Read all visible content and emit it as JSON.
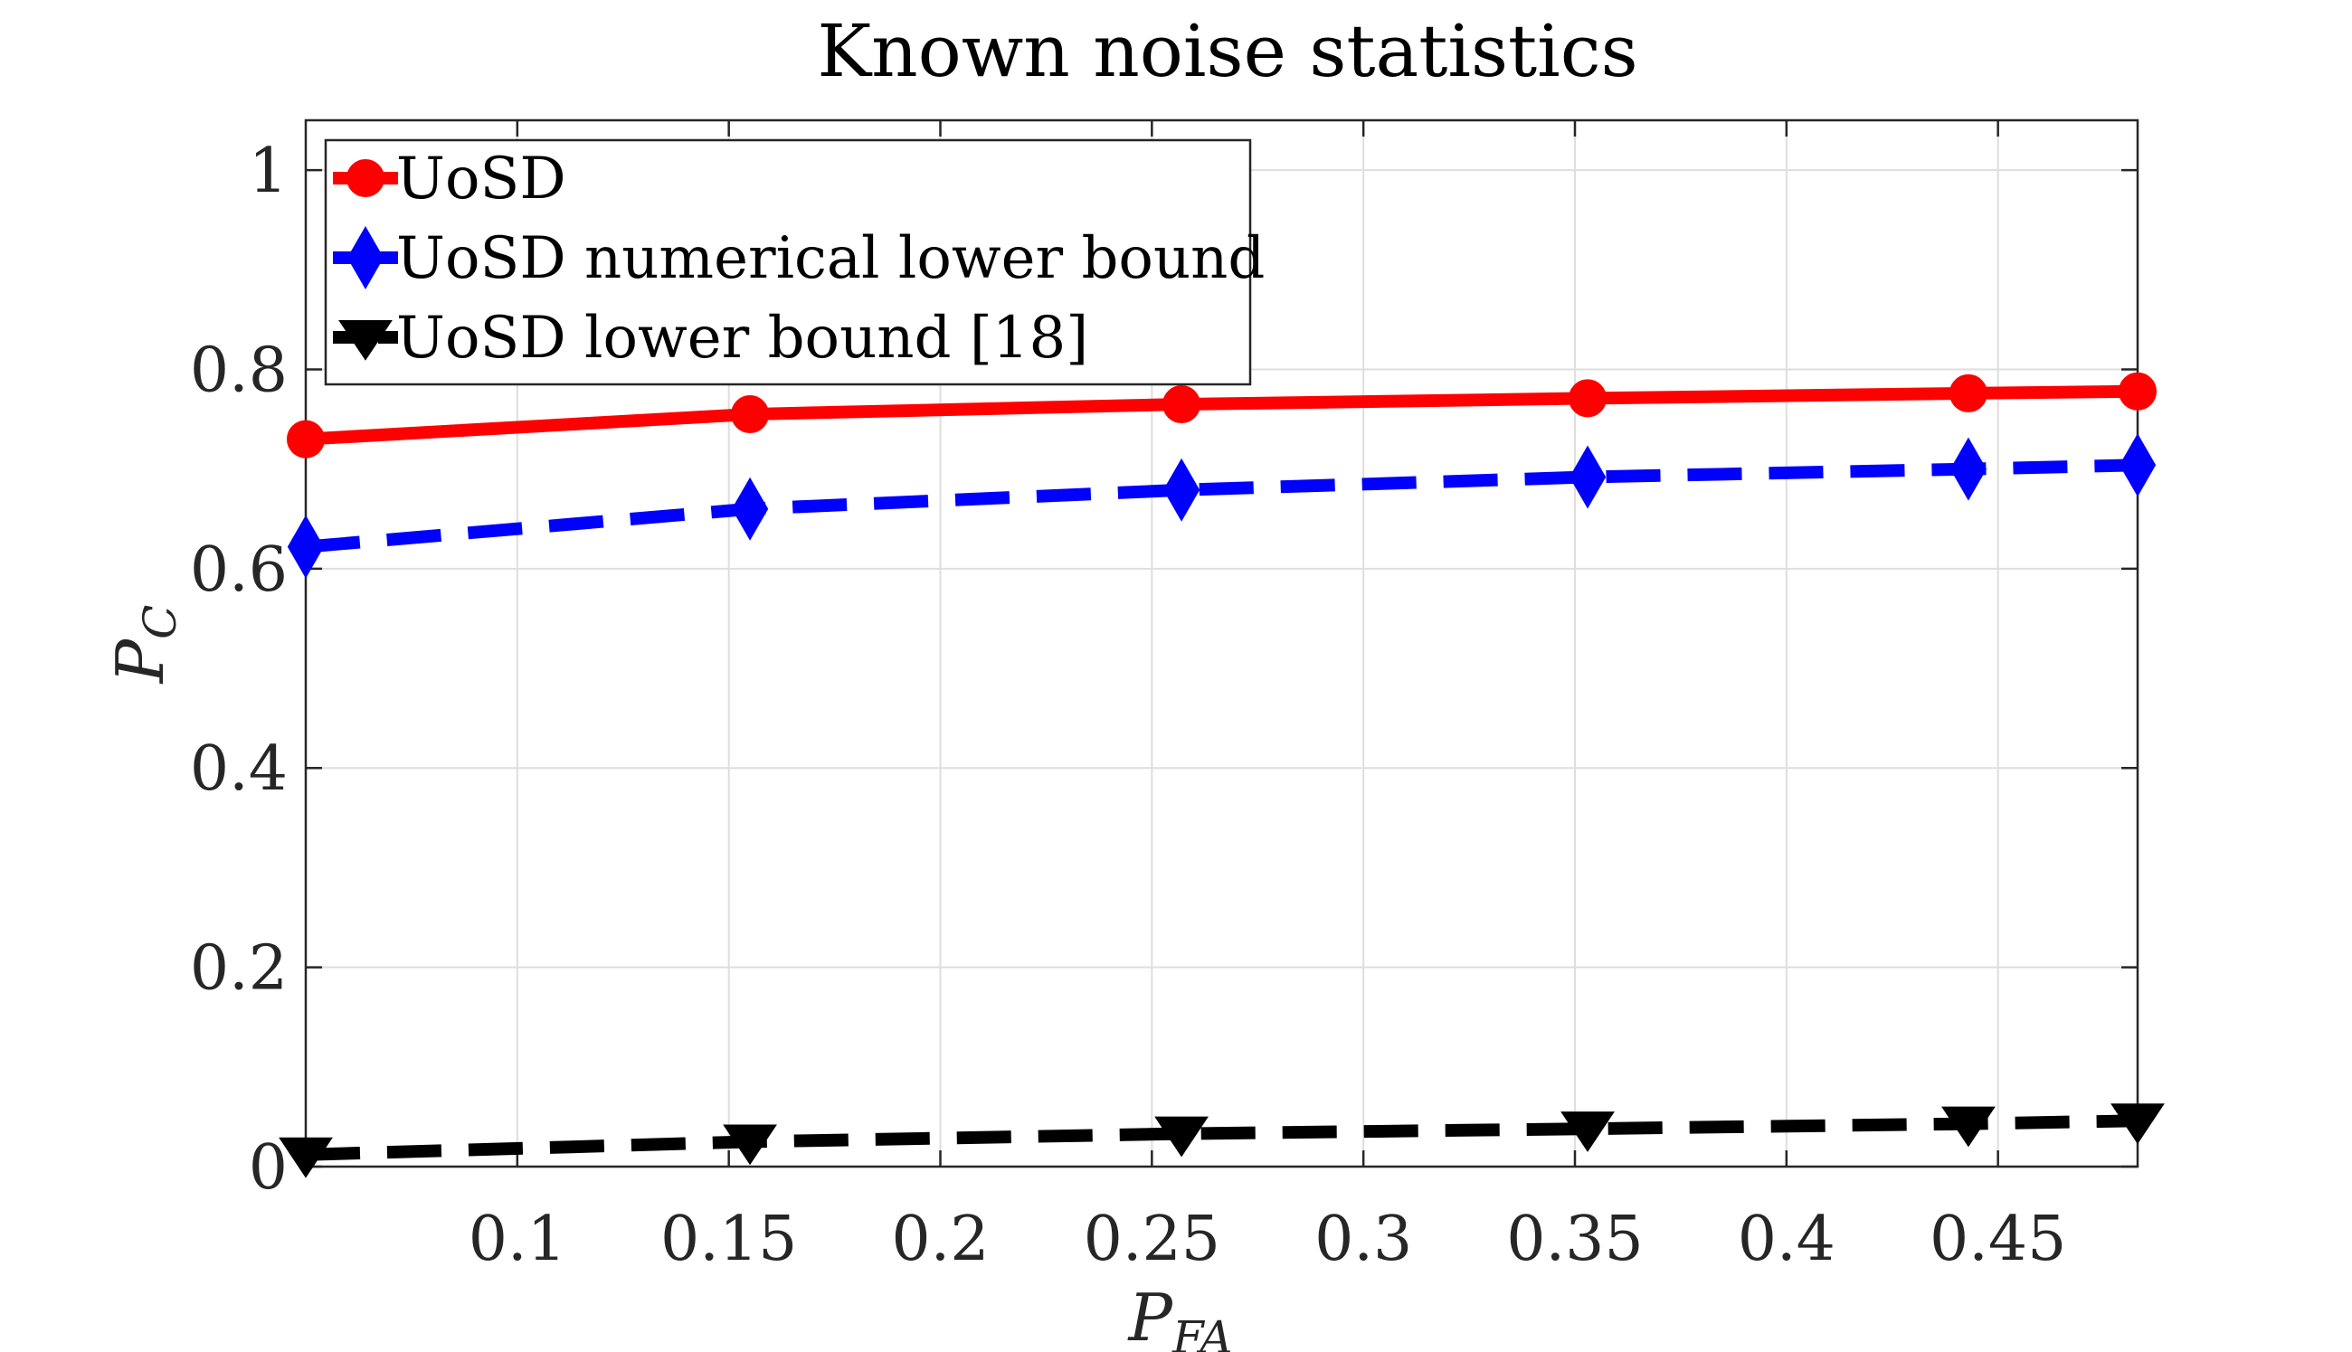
{
  "chart_data": {
    "type": "line",
    "title": "Known noise statistics",
    "xlabel": {
      "main": "P",
      "sub": "FA"
    },
    "ylabel": {
      "main": "P",
      "sub": "C"
    },
    "xlim": [
      0.05,
      0.483
    ],
    "ylim": [
      0,
      1.05
    ],
    "xticks": [
      0.1,
      0.15,
      0.2,
      0.25,
      0.3,
      0.35,
      0.4,
      0.45
    ],
    "xtick_labels": [
      "0.1",
      "0.15",
      "0.2",
      "0.25",
      "0.3",
      "0.35",
      "0.4",
      "0.45"
    ],
    "yticks": [
      0,
      0.2,
      0.4,
      0.6,
      0.8,
      1
    ],
    "ytick_labels": [
      "0",
      "0.2",
      "0.4",
      "0.6",
      "0.8",
      "1"
    ],
    "grid": true,
    "legend_position": "top-left",
    "series": [
      {
        "name": "UoSD",
        "color": "#ff0000",
        "line": "solid",
        "marker": "circle",
        "x": [
          0.05,
          0.155,
          0.257,
          0.353,
          0.443,
          0.483
        ],
        "y": [
          0.73,
          0.755,
          0.765,
          0.771,
          0.776,
          0.778
        ]
      },
      {
        "name": "UoSD numerical lower bound",
        "color": "#0000ff",
        "line": "dashed",
        "marker": "diamond",
        "x": [
          0.05,
          0.155,
          0.257,
          0.353,
          0.443,
          0.483
        ],
        "y": [
          0.622,
          0.66,
          0.679,
          0.692,
          0.7,
          0.704
        ]
      },
      {
        "name": "UoSD lower bound [18]",
        "color": "#000000",
        "line": "dashed",
        "marker": "triangle-down",
        "x": [
          0.05,
          0.155,
          0.257,
          0.353,
          0.443,
          0.483
        ],
        "y": [
          0.012,
          0.025,
          0.033,
          0.038,
          0.043,
          0.046
        ]
      }
    ]
  }
}
